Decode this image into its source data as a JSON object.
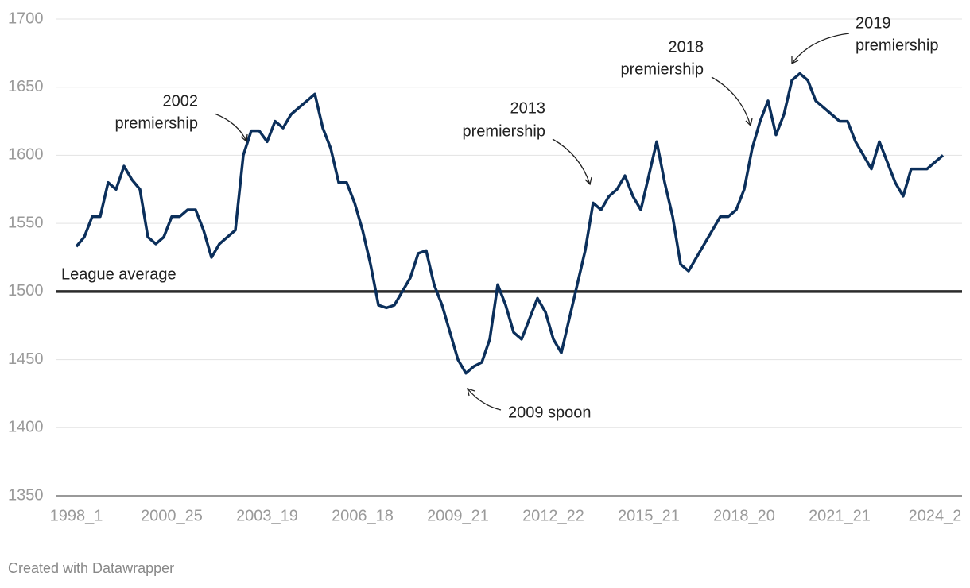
{
  "chart_data": {
    "type": "line",
    "categories": [
      "1998_1",
      null,
      null,
      null,
      null,
      null,
      null,
      null,
      null,
      null,
      null,
      null,
      "2000_25",
      null,
      null,
      null,
      null,
      null,
      null,
      null,
      null,
      null,
      null,
      null,
      "2003_19",
      null,
      null,
      null,
      null,
      null,
      null,
      null,
      null,
      null,
      null,
      null,
      "2006_18",
      null,
      null,
      null,
      null,
      null,
      null,
      null,
      null,
      null,
      null,
      null,
      "2009_21",
      null,
      null,
      null,
      null,
      null,
      null,
      null,
      null,
      null,
      null,
      null,
      "2012_22",
      null,
      null,
      null,
      null,
      null,
      null,
      null,
      null,
      null,
      null,
      null,
      "2015_21",
      null,
      null,
      null,
      null,
      null,
      null,
      null,
      null,
      null,
      null,
      null,
      "2018_20",
      null,
      null,
      null,
      null,
      null,
      null,
      null,
      null,
      null,
      null,
      null,
      "2021_21",
      null,
      null,
      null,
      null,
      null,
      null,
      null,
      null,
      null,
      null,
      null,
      "2024_2",
      null
    ],
    "series": [
      {
        "color": "#0b2f5b",
        "values": [
          1533,
          1540,
          1555,
          1555,
          1580,
          1575,
          1592,
          1582,
          1575,
          1540,
          1535,
          1540,
          1555,
          1555,
          1560,
          1560,
          1545,
          1525,
          1535,
          1540,
          1545,
          1600,
          1618,
          1618,
          1610,
          1625,
          1620,
          1630,
          1635,
          1640,
          1645,
          1620,
          1605,
          1580,
          1580,
          1565,
          1545,
          1520,
          1490,
          1488,
          1490,
          1500,
          1510,
          1528,
          1530,
          1505,
          1490,
          1470,
          1450,
          1440,
          1445,
          1448,
          1465,
          1505,
          1490,
          1470,
          1465,
          1480,
          1495,
          1485,
          1465,
          1455,
          1480,
          1505,
          1530,
          1565,
          1560,
          1570,
          1575,
          1585,
          1570,
          1560,
          1585,
          1610,
          1580,
          1555,
          1520,
          1515,
          1525,
          1535,
          1545,
          1555,
          1555,
          1560,
          1575,
          1605,
          1625,
          1640,
          1615,
          1630,
          1655,
          1660,
          1655,
          1640,
          1635,
          1630,
          1625,
          1625,
          1610,
          1600,
          1590,
          1610,
          1595,
          1580,
          1570,
          1590,
          1590,
          1590,
          1595,
          1600
        ]
      }
    ],
    "ylim": [
      1350,
      1700
    ],
    "yticks": [
      1350,
      1400,
      1450,
      1500,
      1550,
      1600,
      1650,
      1700
    ],
    "grid": true,
    "reference_line": {
      "value": 1500,
      "label": "League average"
    },
    "annotations": [
      {
        "lines": [
          "2002",
          "premiership"
        ]
      },
      {
        "lines": [
          "2013",
          "premiership"
        ]
      },
      {
        "lines": [
          "2018",
          "premiership"
        ]
      },
      {
        "lines": [
          "2019",
          "premiership"
        ]
      },
      {
        "lines": [
          "2009 spoon"
        ]
      }
    ],
    "source": "Created with Datawrapper"
  }
}
